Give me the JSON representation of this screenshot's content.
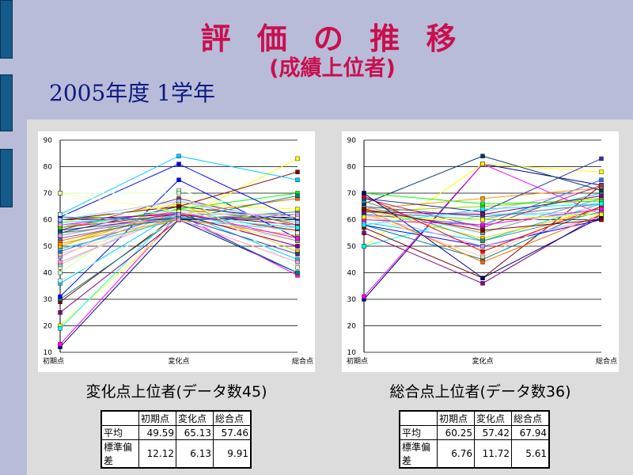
{
  "title": "評 価 の 推 移",
  "subtitle": "(成績上位者)",
  "year_label": "2005年度 1学年",
  "tables": [
    {
      "headers": [
        "",
        "初期点",
        "変化点",
        "総合点"
      ],
      "rows": [
        [
          "平均",
          "49.59",
          "65.13",
          "57.46"
        ],
        [
          "標準偏差",
          "12.12",
          "6.13",
          "9.91"
        ]
      ]
    },
    {
      "headers": [
        "",
        "初期点",
        "変化点",
        "総合点"
      ],
      "rows": [
        [
          "平均",
          "60.25",
          "57.42",
          "67.94"
        ],
        [
          "標準偏差",
          "6.76",
          "11.72",
          "5.61"
        ]
      ]
    }
  ],
  "chart_data": [
    {
      "type": "line",
      "title": "変化点上位者(データ数45)",
      "categories": [
        "初期点",
        "変化点",
        "総合点"
      ],
      "ylim": [
        10,
        90
      ],
      "yticks": [
        "10",
        "20",
        "30",
        "40",
        "50",
        "60",
        "70",
        "80",
        "90"
      ],
      "grid": true,
      "series": [
        [
          12,
          60,
          40
        ],
        [
          13,
          62,
          39
        ],
        [
          20,
          60,
          83
        ],
        [
          19,
          64,
          55
        ],
        [
          25,
          60,
          62
        ],
        [
          29,
          62,
          58
        ],
        [
          30,
          61,
          40
        ],
        [
          31,
          75,
          53
        ],
        [
          36,
          63,
          45
        ],
        [
          37,
          60,
          48
        ],
        [
          40,
          71,
          60
        ],
        [
          42,
          65,
          58
        ],
        [
          43,
          64,
          55
        ],
        [
          44,
          62,
          50
        ],
        [
          46,
          67,
          57
        ],
        [
          47,
          61,
          52
        ],
        [
          48,
          63,
          61
        ],
        [
          49,
          60,
          56
        ],
        [
          50,
          64,
          59
        ],
        [
          50,
          66,
          48
        ],
        [
          51,
          60,
          54
        ],
        [
          52,
          62,
          68
        ],
        [
          53,
          61,
          57
        ],
        [
          54,
          63,
          52
        ],
        [
          55,
          65,
          60
        ],
        [
          55,
          60,
          63
        ],
        [
          56,
          68,
          58
        ],
        [
          56,
          61,
          47
        ],
        [
          57,
          62,
          56
        ],
        [
          57,
          64,
          70
        ],
        [
          58,
          60,
          61
        ],
        [
          58,
          63,
          53
        ],
        [
          59,
          66,
          64
        ],
        [
          59,
          61,
          57
        ],
        [
          60,
          62,
          50
        ],
        [
          60,
          65,
          78
        ],
        [
          61,
          60,
          69
        ],
        [
          61,
          81,
          60
        ],
        [
          62,
          84,
          75
        ],
        [
          62,
          63,
          55
        ],
        [
          70,
          70,
          42
        ],
        [
          70,
          63,
          61
        ],
        [
          60,
          67,
          59
        ],
        [
          58,
          60,
          44
        ],
        [
          54,
          62,
          62
        ]
      ],
      "colors": [
        "#000080",
        "#ff00ff",
        "#ffff00",
        "#00ffff",
        "#800080",
        "#800000",
        "#008080",
        "#0000ff",
        "#00ccff",
        "#ccffff",
        "#ccffcc",
        "#ffff99",
        "#99ccff",
        "#ff99cc",
        "#cc99ff",
        "#ffcc99",
        "#3366ff",
        "#33cccc",
        "#99cc00",
        "#ffcc00",
        "#ff9900",
        "#ff6600",
        "#666699",
        "#969696",
        "#003366",
        "#339966",
        "#993366",
        "#333399",
        "#ff0000",
        "#00ff00"
      ]
    },
    {
      "type": "line",
      "title": "総合点上位者(データ数36)",
      "categories": [
        "初期点",
        "変化点",
        "総合点"
      ],
      "ylim": [
        10,
        90
      ],
      "yticks": [
        "10",
        "20",
        "30",
        "40",
        "50",
        "60",
        "70",
        "80",
        "90"
      ],
      "grid": true,
      "series": [
        [
          30,
          81,
          73
        ],
        [
          31,
          81,
          62
        ],
        [
          50,
          81,
          78
        ],
        [
          50,
          62,
          62
        ],
        [
          55,
          36,
          62
        ],
        [
          57,
          38,
          73
        ],
        [
          58,
          45,
          65
        ],
        [
          58,
          50,
          60
        ],
        [
          59,
          52,
          66
        ],
        [
          59,
          55,
          70
        ],
        [
          60,
          57,
          64
        ],
        [
          60,
          60,
          69
        ],
        [
          61,
          62,
          63
        ],
        [
          61,
          63,
          72
        ],
        [
          62,
          50,
          61
        ],
        [
          62,
          46,
          67
        ],
        [
          62,
          58,
          75
        ],
        [
          63,
          60,
          70
        ],
        [
          63,
          65,
          68
        ],
        [
          64,
          53,
          64
        ],
        [
          64,
          68,
          72
        ],
        [
          64,
          44,
          62
        ],
        [
          65,
          61,
          66
        ],
        [
          65,
          55,
          68
        ],
        [
          66,
          84,
          71
        ],
        [
          67,
          52,
          63
        ],
        [
          68,
          57,
          73
        ],
        [
          68,
          63,
          83
        ],
        [
          69,
          48,
          65
        ],
        [
          70,
          66,
          67
        ],
        [
          70,
          38,
          61
        ],
        [
          60,
          58,
          64
        ],
        [
          61,
          60,
          62
        ],
        [
          58,
          64,
          66
        ],
        [
          63,
          62,
          69
        ],
        [
          64,
          56,
          60
        ]
      ],
      "colors": [
        "#000080",
        "#ff00ff",
        "#ffff00",
        "#00ffff",
        "#800080",
        "#800000",
        "#008080",
        "#0000ff",
        "#00ccff",
        "#ccffff",
        "#ccffcc",
        "#ffff99",
        "#99ccff",
        "#ff99cc",
        "#cc99ff",
        "#ffcc99",
        "#3366ff",
        "#33cccc",
        "#99cc00",
        "#ffcc00",
        "#ff9900",
        "#ff6600",
        "#666699",
        "#969696",
        "#003366",
        "#339966",
        "#993366",
        "#333399",
        "#ff0000",
        "#00ff00"
      ]
    }
  ]
}
